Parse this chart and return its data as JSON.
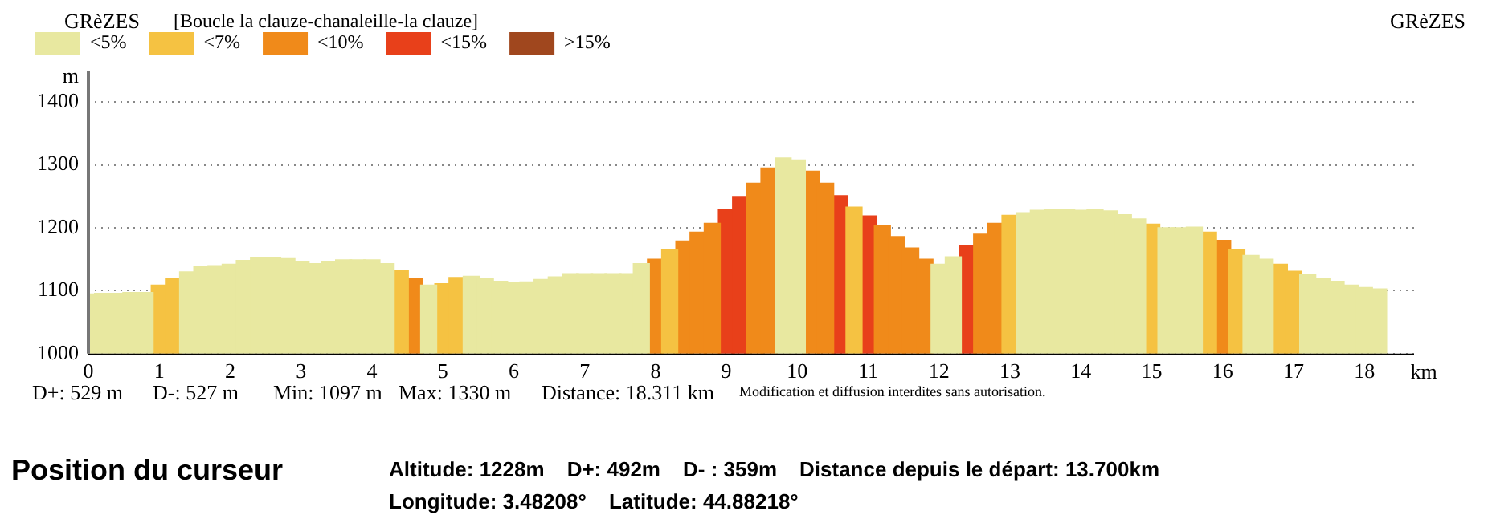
{
  "chart_data": {
    "type": "bar",
    "title": "[Boucle la clauze-chanaleille-la clauze]",
    "xlabel": "km",
    "ylabel": "m",
    "xlim": [
      0,
      18.7
    ],
    "xticks": [
      0,
      1,
      2,
      3,
      4,
      5,
      6,
      7,
      8,
      9,
      10,
      11,
      12,
      13,
      14,
      15,
      16,
      17,
      18
    ],
    "ylim": [
      1000,
      1450
    ],
    "yticks": [
      1000,
      1100,
      1200,
      1300,
      1400
    ],
    "grid": "y",
    "legend": "top left",
    "series": [
      {
        "name": "<5%",
        "color": "#e8e8a0",
        "x": [
          0,
          0.2,
          0.4,
          0.6,
          0.8,
          1.4,
          1.6,
          1.8,
          2.0,
          2.2,
          2.4,
          2.6,
          2.8,
          3.0,
          3.2,
          3.4,
          3.6,
          3.8,
          4.0,
          4.2,
          4.8,
          5.4,
          5.6,
          5.8,
          6.0,
          6.2,
          6.4,
          6.6,
          6.8,
          7.0,
          7.2,
          7.4,
          7.6,
          7.8,
          9.8,
          10.0,
          12.0,
          12.2,
          13.2,
          13.4,
          13.6,
          13.8,
          14.0,
          14.2,
          14.4,
          14.6,
          14.8,
          15.2,
          15.4,
          15.6,
          16.4,
          16.6,
          17.2,
          17.4,
          17.6,
          17.8,
          18.0,
          18.2
        ],
        "values": [
          1095,
          1096,
          1096,
          1097,
          1097,
          1130,
          1138,
          1140,
          1142,
          1148,
          1152,
          1153,
          1151,
          1147,
          1143,
          1146,
          1149,
          1149,
          1149,
          1143,
          1109,
          1123,
          1120,
          1115,
          1113,
          1114,
          1118,
          1122,
          1127,
          1127,
          1127,
          1127,
          1127,
          1143,
          1311,
          1308,
          1142,
          1154,
          1224,
          1228,
          1229,
          1229,
          1228,
          1229,
          1227,
          1221,
          1214,
          1200,
          1200,
          1201,
          1156,
          1150,
          1126,
          1120,
          1115,
          1109,
          1105,
          1103
        ]
      },
      {
        "name": "<7%",
        "color": "#f5c242",
        "x": [
          1.0,
          1.2,
          4.4,
          5.0,
          5.2,
          8.2,
          10.8,
          13.0,
          15.0,
          15.8,
          16.2,
          16.8,
          17.0
        ],
        "values": [
          1109,
          1120,
          1132,
          1111,
          1121,
          1165,
          1233,
          1220,
          1206,
          1193,
          1166,
          1142,
          1131
        ]
      },
      {
        "name": "<10%",
        "color": "#f08a1a",
        "x": [
          4.6,
          8.0,
          8.4,
          8.6,
          8.8,
          9.4,
          9.6,
          10.2,
          10.4,
          11.2,
          11.4,
          11.6,
          11.8,
          12.6,
          12.8,
          16.0
        ],
        "values": [
          1120,
          1150,
          1179,
          1193,
          1207,
          1271,
          1295,
          1290,
          1271,
          1204,
          1186,
          1168,
          1150,
          1190,
          1207,
          1180
        ]
      },
      {
        "name": "<15%",
        "color": "#e8401a",
        "x": [
          9.0,
          9.2,
          10.6,
          11.0,
          12.4
        ],
        "values": [
          1229,
          1250,
          1251,
          1219,
          1172
        ]
      },
      {
        "name": ">15%",
        "color": "#a0471e"
      }
    ],
    "annotations": [
      "GRèZES",
      "GRèZES",
      "D+: 529 m",
      "D-: 527 m",
      "Min: 1097 m",
      "Max: 1330 m",
      "Distance: 18.311 km",
      "Modification et diffusion interdites sans autorisation.",
      "Position du curseur",
      "Altitude: 1228m",
      "D+: 492m",
      "D- : 359m",
      "Distance depuis le départ: 13.700km",
      "Longitude: 3.48208°",
      "Latitude: 44.88218°"
    ]
  }
}
